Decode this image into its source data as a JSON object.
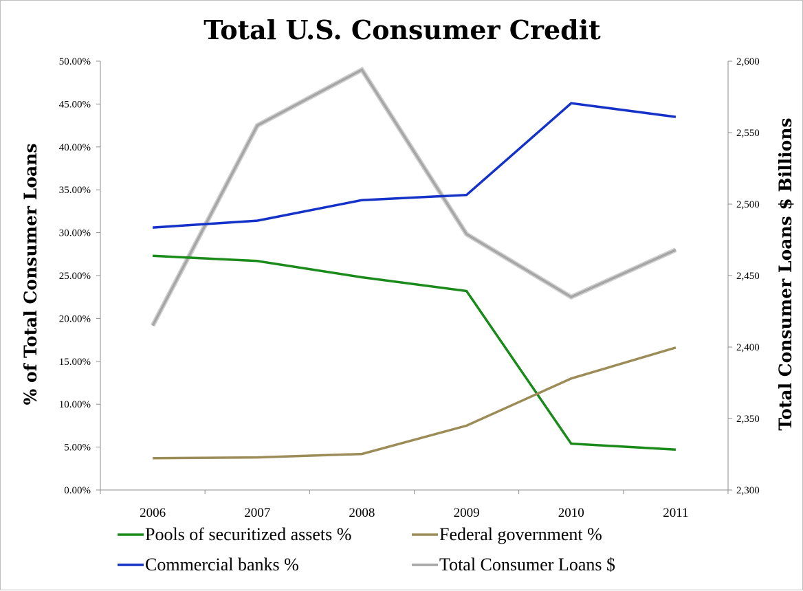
{
  "chart_data": {
    "type": "line",
    "title": "Total U.S. Consumer Credit",
    "x": [
      "2006",
      "2007",
      "2008",
      "2009",
      "2010",
      "2011"
    ],
    "y_left": {
      "label": "% of Total Consumer Loans",
      "range": [
        0,
        50
      ],
      "ticks": [
        "0.00%",
        "5.00%",
        "10.00%",
        "15.00%",
        "20.00%",
        "25.00%",
        "30.00%",
        "35.00%",
        "40.00%",
        "45.00%",
        "50.00%"
      ]
    },
    "y_right": {
      "label": "Total Consumer Loans $ Billions",
      "range": [
        2300,
        2600
      ],
      "ticks": [
        "2,300",
        "2,350",
        "2,400",
        "2,450",
        "2,500",
        "2,550",
        "2,600"
      ]
    },
    "series": [
      {
        "name": "Pools of securitized assets %",
        "axis": "left",
        "color": "#1a8a1a",
        "values": [
          27.3,
          26.7,
          24.8,
          23.2,
          5.4,
          4.7
        ]
      },
      {
        "name": "Federal government %",
        "axis": "left",
        "color": "#9c8c57",
        "values": [
          3.7,
          3.8,
          4.2,
          7.5,
          13.0,
          16.6
        ]
      },
      {
        "name": "Commercial banks %",
        "axis": "left",
        "color": "#1432c8",
        "values": [
          30.6,
          31.4,
          33.8,
          34.4,
          45.1,
          43.5
        ]
      },
      {
        "name": "Total Consumer Loans $",
        "axis": "right",
        "color": "#a6a6a6",
        "values": [
          2415,
          2555,
          2594,
          2479,
          2435,
          2468
        ]
      }
    ],
    "legend": "bottom",
    "grid": false
  }
}
